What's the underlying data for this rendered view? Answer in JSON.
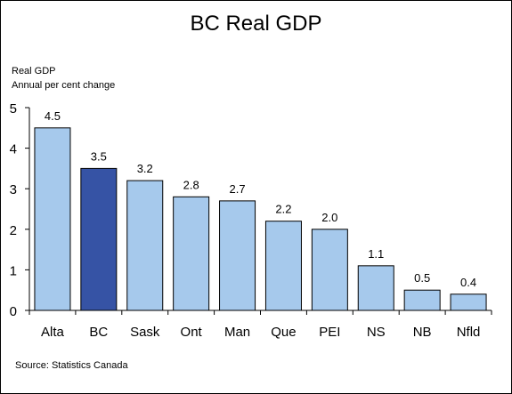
{
  "chart_data": {
    "type": "bar",
    "title": "BC Real GDP",
    "ylabel": [
      "Real GDP",
      "Annual per cent change"
    ],
    "xlabel": "",
    "categories": [
      "Alta",
      "BC",
      "Sask",
      "Ont",
      "Man",
      "Que",
      "PEI",
      "NS",
      "NB",
      "Nfld"
    ],
    "values": [
      4.5,
      3.5,
      3.2,
      2.8,
      2.7,
      2.2,
      2.0,
      1.1,
      0.5,
      0.4
    ],
    "value_labels": [
      "4.5",
      "3.5",
      "3.2",
      "2.8",
      "2.7",
      "2.2",
      "2.0",
      "1.1",
      "0.5",
      "0.4"
    ],
    "highlight_category": "BC",
    "ylim": [
      0,
      5
    ],
    "yticks": [
      "0",
      "1",
      "2",
      "3",
      "4",
      "5"
    ],
    "grid": false,
    "legend": "none",
    "colors": {
      "bar": "#a6c9ec",
      "highlight": "#3653a5",
      "bar_edge": "#000000",
      "axis": "#000000"
    }
  },
  "source": "Source:   Statistics Canada"
}
